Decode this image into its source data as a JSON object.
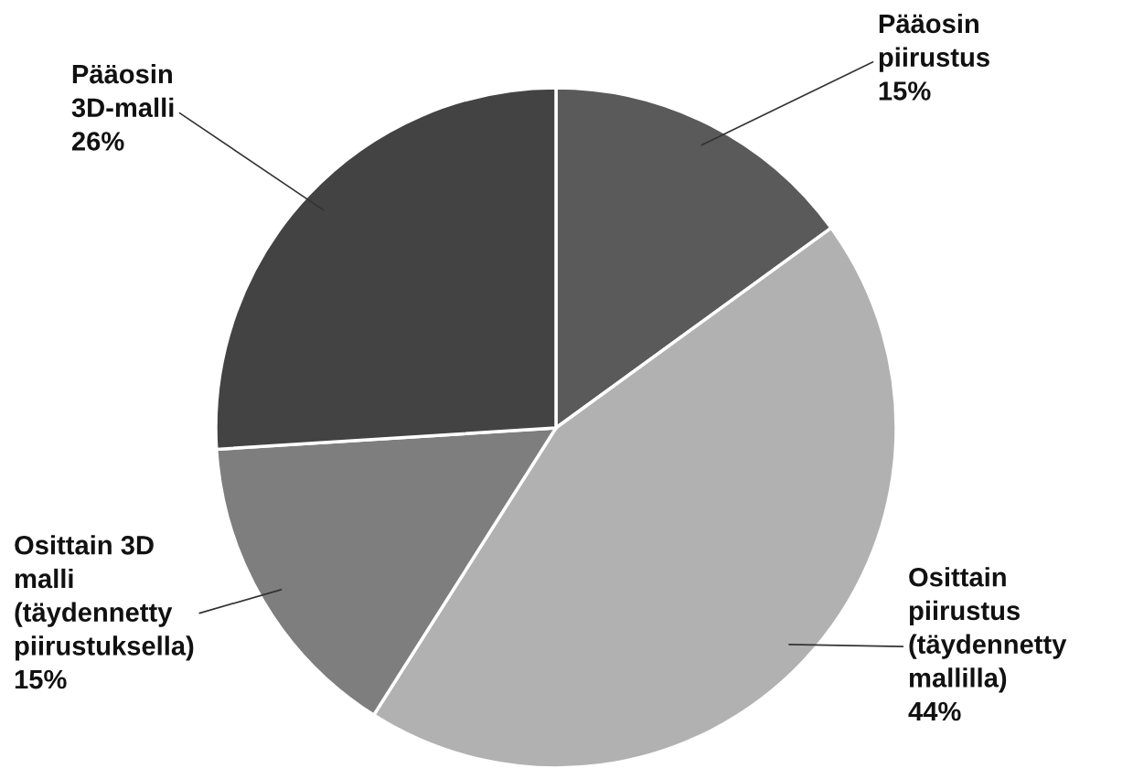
{
  "chart_data": {
    "type": "pie",
    "categories": [
      "Pääosin\npiirustus",
      "Osittain\npiirustus\n(täydennetty\nmallilla)",
      "Osittain 3D\nmalli\n(täydennetty\npiirustuksella)",
      "Pääosin\n3D-malli"
    ],
    "values": [
      15,
      44,
      15,
      26
    ],
    "value_labels": [
      "15%",
      "44%",
      "15%",
      "26%"
    ],
    "colors": [
      "#5a5a5a",
      "#b1b1b1",
      "#7e7e7e",
      "#434343"
    ]
  }
}
